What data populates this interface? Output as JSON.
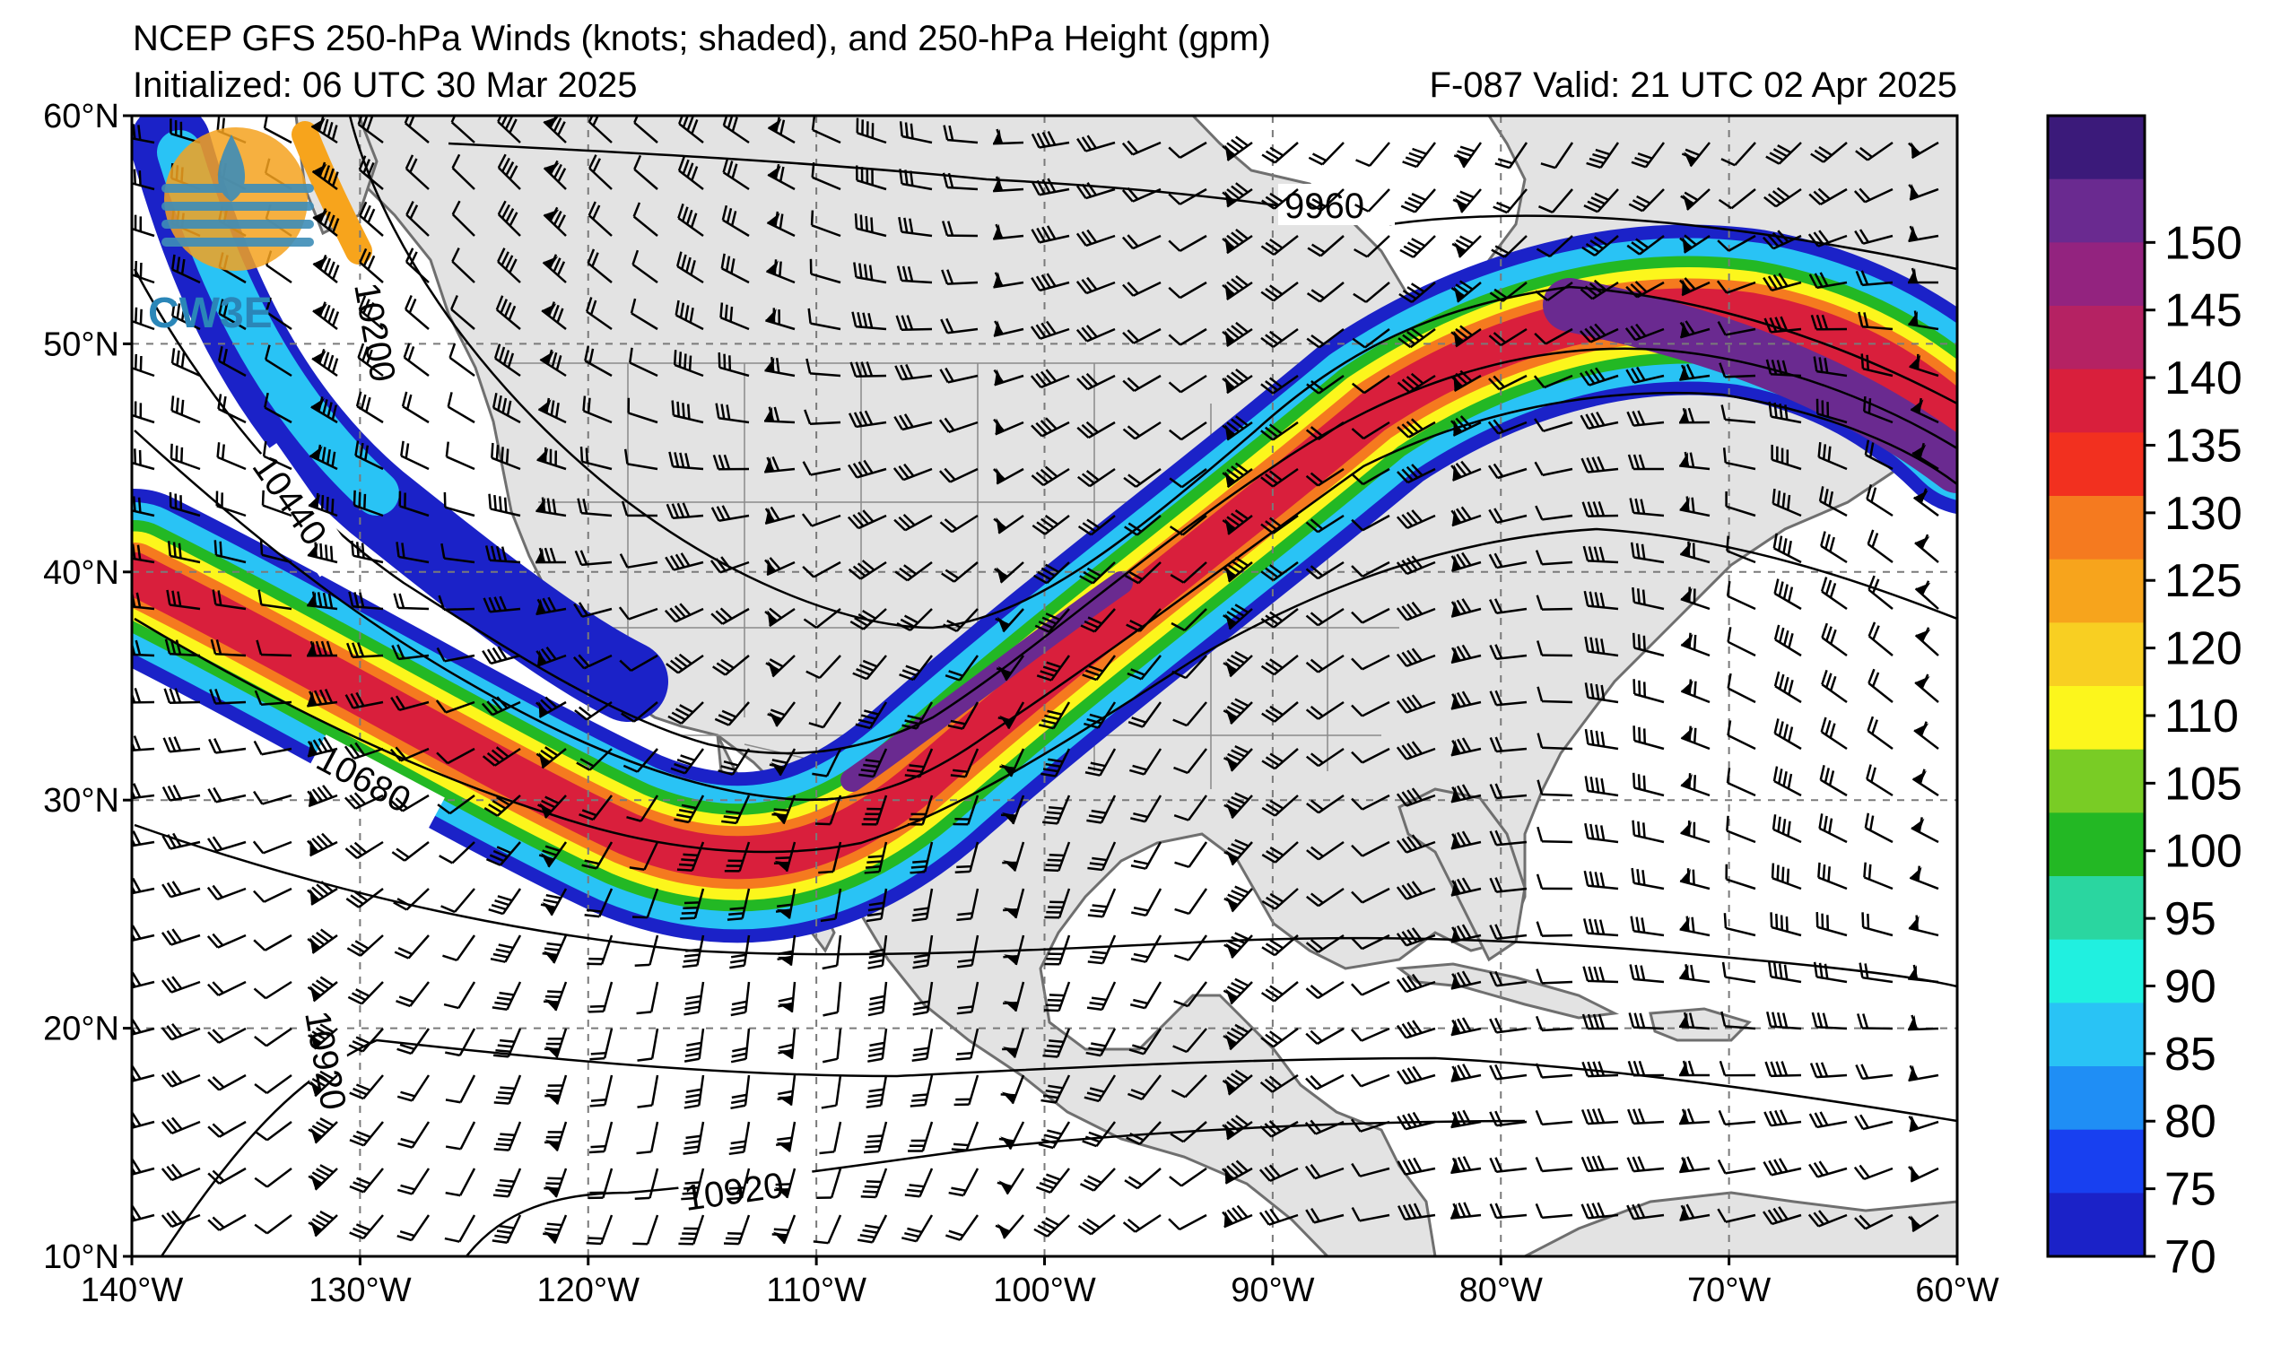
{
  "title": {
    "line1": "NCEP GFS 250-hPa Winds (knots; shaded), and 250-hPa Height (gpm)",
    "line2_left": "Initialized: 06 UTC 30 Mar 2025",
    "line2_right": "F-087  Valid: 21 UTC 02 Apr 2025"
  },
  "logo": {
    "text": "CW3E"
  },
  "map": {
    "lon_range": [
      -140,
      -60
    ],
    "lat_range": [
      10,
      60
    ],
    "lon_ticks": [
      "140°W",
      "130°W",
      "120°W",
      "110°W",
      "100°W",
      "90°W",
      "80°W",
      "70°W",
      "60°W"
    ],
    "lat_ticks": [
      "10°N",
      "20°N",
      "30°N",
      "40°N",
      "50°N",
      "60°N"
    ],
    "gridlines": "dashed"
  },
  "height_contours": {
    "units": "gpm",
    "labels": [
      "9960",
      "10200",
      "10440",
      "10680",
      "10920",
      "10920"
    ]
  },
  "colorbar": {
    "ticks": [
      "150",
      "145",
      "140",
      "135",
      "130",
      "125",
      "120",
      "110",
      "105",
      "100",
      "95",
      "90",
      "85",
      "80",
      "75",
      "70"
    ],
    "colors": [
      "#3b1a7a",
      "#6a2a90",
      "#93237f",
      "#b52263",
      "#d91f3c",
      "#f2301f",
      "#f57a1f",
      "#f7a41c",
      "#f8cf22",
      "#fcf61c",
      "#79cc25",
      "#23b824",
      "#2ad6a0",
      "#20f0e0",
      "#29c3f5",
      "#1f8ef5",
      "#1840f0",
      "#1b22c8"
    ]
  }
}
